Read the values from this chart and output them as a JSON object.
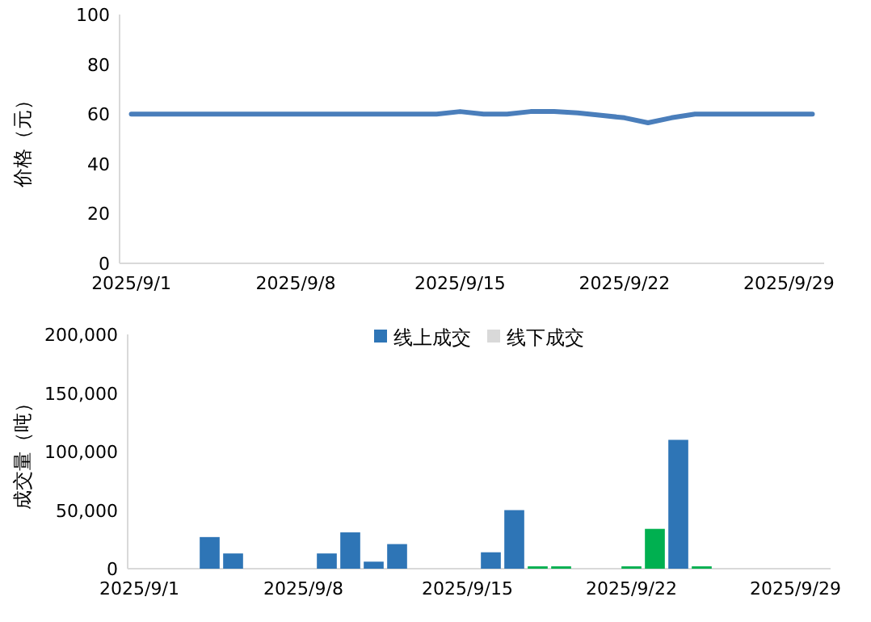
{
  "chart_data": [
    {
      "type": "line",
      "ylabel": "价格（元）",
      "categories": [
        "2025/9/1",
        null,
        null,
        null,
        null,
        null,
        null,
        "2025/9/8",
        null,
        null,
        null,
        null,
        null,
        null,
        "2025/9/15",
        null,
        null,
        null,
        null,
        null,
        null,
        "2025/9/22",
        null,
        null,
        null,
        null,
        null,
        null,
        "2025/9/29",
        null
      ],
      "series": [
        {
          "color": "#4a7ebb",
          "values": [
            60,
            60,
            60,
            60,
            60,
            60,
            60,
            60,
            60,
            60,
            60,
            60,
            60,
            60,
            61,
            60,
            60,
            61,
            61,
            60.5,
            59.5,
            58.5,
            56.5,
            58.5,
            60,
            60,
            60,
            60,
            60,
            60
          ]
        }
      ],
      "ylim": [
        0,
        100
      ],
      "yticks": [
        0,
        20,
        40,
        60,
        80,
        100
      ]
    },
    {
      "type": "bar",
      "stacked": true,
      "ylabel": "成交量（吨）",
      "legend": "top",
      "categories": [
        "2025/9/1",
        null,
        null,
        null,
        null,
        null,
        null,
        "2025/9/8",
        null,
        null,
        null,
        null,
        null,
        null,
        "2025/9/15",
        null,
        null,
        null,
        null,
        null,
        null,
        "2025/9/22",
        null,
        null,
        null,
        null,
        null,
        null,
        "2025/9/29",
        null
      ],
      "series": [
        {
          "name": "线上成交",
          "color": "#2e75b6",
          "colors": [
            null,
            null,
            null,
            "#2e75b6",
            "#2e75b6",
            null,
            null,
            null,
            "#2e75b6",
            "#2e75b6",
            "#2e75b6",
            "#2e75b6",
            null,
            null,
            null,
            "#2e75b6",
            "#2e75b6",
            "#00b050",
            "#00b050",
            null,
            null,
            "#00b050",
            "#00b050",
            "#2e75b6",
            "#00b050",
            null,
            null,
            null,
            null,
            null
          ],
          "values": [
            null,
            null,
            null,
            27000,
            13000,
            null,
            null,
            null,
            13000,
            31000,
            6000,
            21000,
            null,
            null,
            null,
            14000,
            50000,
            2000,
            2000,
            null,
            null,
            2000,
            34000,
            110000,
            2000,
            null,
            null,
            null,
            null,
            null
          ]
        },
        {
          "name": "线下成交",
          "color": "#d9d9d9",
          "values": [
            null,
            null,
            null,
            null,
            null,
            null,
            null,
            null,
            null,
            null,
            null,
            null,
            null,
            null,
            null,
            null,
            null,
            null,
            null,
            null,
            null,
            null,
            null,
            null,
            null,
            null,
            null,
            null,
            null,
            null
          ]
        }
      ],
      "ylim": [
        0,
        200000
      ],
      "yticks": [
        0,
        {
          "value": 50000,
          "label": "50,000"
        },
        {
          "value": 100000,
          "label": "100,000"
        },
        {
          "value": 150000,
          "label": "150,000"
        },
        {
          "value": 200000,
          "label": "200,000"
        }
      ]
    }
  ]
}
